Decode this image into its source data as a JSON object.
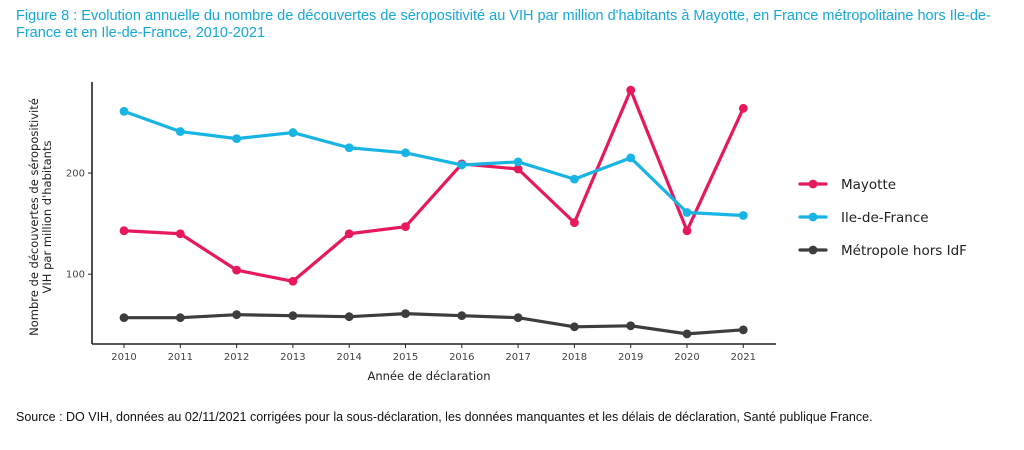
{
  "figure": {
    "title": "Figure 8 : Evolution annuelle du nombre de découvertes de séropositivité au VIH par million d'habitants à Mayotte, en France métropolitaine hors Ile-de-France et en Ile-de-France, 2010-2021",
    "source": "Source : DO VIH, données au 02/11/2021 corrigées pour la sous-déclaration, les données manquantes et les délais de déclaration, Santé publique France."
  },
  "chart_data": {
    "type": "line",
    "xlabel": "Année de déclaration",
    "ylabel_lines": [
      "Nombre de découvertes de séropositivité",
      "VIH par million d'habitants"
    ],
    "x": [
      "2010",
      "2011",
      "2012",
      "2013",
      "2014",
      "2015",
      "2016",
      "2017",
      "2018",
      "2019",
      "2020",
      "2021"
    ],
    "yticks": [
      100,
      200
    ],
    "ylim": [
      31,
      290
    ],
    "grid": false,
    "legend_position": "right",
    "series": [
      {
        "name": "Mayotte",
        "color": "#e8185d",
        "values": [
          143,
          140,
          104,
          93,
          140,
          147,
          209,
          204,
          151,
          282,
          143,
          264
        ]
      },
      {
        "name": "Ile-de-France",
        "color": "#18b4e3",
        "values": [
          261,
          241,
          234,
          240,
          225,
          220,
          208,
          211,
          194,
          215,
          161,
          158
        ]
      },
      {
        "name": "Métropole hors IdF",
        "color": "#3d3d3d",
        "values": [
          57,
          57,
          60,
          59,
          58,
          61,
          59,
          57,
          48,
          49,
          41,
          45
        ]
      }
    ]
  }
}
